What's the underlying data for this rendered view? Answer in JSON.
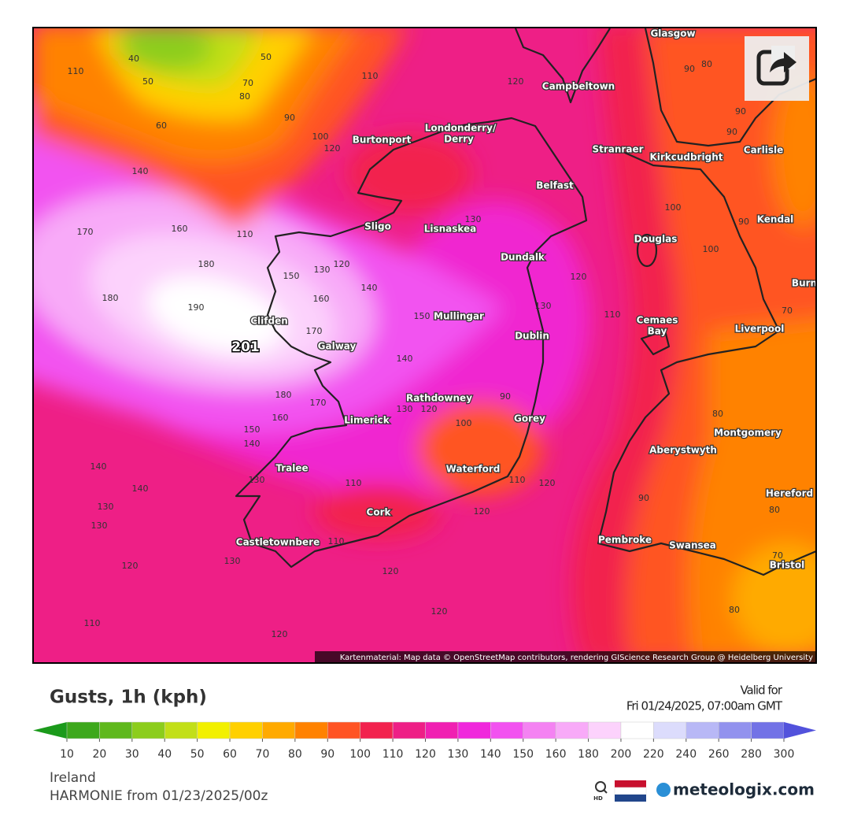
{
  "header": {
    "title": "Gusts, 1h (kph)",
    "valid_label": "Valid for",
    "valid_time": "Fri 01/24/2025, 07:00am GMT"
  },
  "map": {
    "attribution": "Kartenmaterial: Map data © OpenStreetMap contributors, rendering GIScience Research Group @ Heidelberg University",
    "max_label": 201,
    "places": [
      "Glasgow",
      "Campbeltown",
      "Londonderry/",
      "Derry",
      "Burtonport",
      "Stranraer",
      "Kirkcudbright",
      "Carlisle",
      "Belfast",
      "Sligo",
      "Lisnaskea",
      "Kendal",
      "Douglas",
      "Dundalk",
      "Mullingar",
      "Cemaes",
      "Bay",
      "Liverpool",
      "Clifden",
      "Galway",
      "Dublin",
      "Rathdowney",
      "Gorey",
      "Limerick",
      "Montgomery",
      "Aberystwyth",
      "Tralee",
      "Waterford",
      "Hereford",
      "Cork",
      "Castletownbere",
      "Pembroke",
      "Swansea",
      "Bristol",
      "Burn"
    ],
    "contour_labels": [
      40,
      50,
      50,
      110,
      70,
      80,
      60,
      90,
      110,
      120,
      100,
      120,
      140,
      170,
      160,
      110,
      180,
      130,
      120,
      150,
      180,
      190,
      160,
      140,
      170,
      150,
      130,
      120,
      130,
      110,
      100,
      100,
      90,
      80,
      90,
      90,
      90,
      70,
      140,
      180,
      170,
      160,
      130,
      120,
      90,
      100,
      150,
      140,
      140,
      140,
      130,
      130,
      130,
      110,
      120,
      110,
      120,
      130,
      110,
      120,
      120,
      120,
      110,
      120,
      90,
      80,
      80,
      70,
      80
    ]
  },
  "legend": {
    "ticks": [
      10,
      20,
      30,
      40,
      50,
      60,
      70,
      80,
      90,
      100,
      110,
      120,
      130,
      140,
      150,
      160,
      180,
      200,
      220,
      240,
      260,
      280,
      300
    ],
    "colors": [
      "#1b9a1b",
      "#3da81c",
      "#5fb81c",
      "#8ccd1c",
      "#c2df18",
      "#f2f000",
      "#ffd000",
      "#ffaa00",
      "#ff8200",
      "#ff5424",
      "#f2224e",
      "#ee1f86",
      "#f020b2",
      "#f028dc",
      "#f252f0",
      "#f482f2",
      "#f8aaf8",
      "#fcd2fc",
      "#ffffff",
      "#dcdcfc",
      "#b8b8f6",
      "#9292ee",
      "#7272e6",
      "#5252dc"
    ]
  },
  "footer": {
    "region": "Ireland",
    "model": "HARMONIE from 01/23/2025/00z",
    "hd_label": "HD",
    "brand": "meteologix.com"
  }
}
